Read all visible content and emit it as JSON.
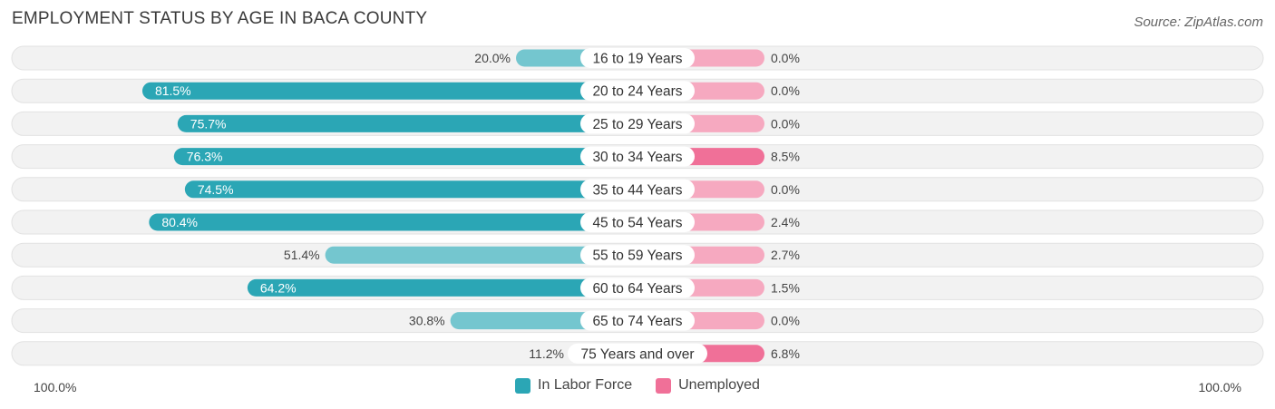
{
  "header": {
    "title": "EMPLOYMENT STATUS BY AGE IN BACA COUNTY",
    "source": "Source: ZipAtlas.com"
  },
  "colors": {
    "in_labor_force": "#2ba6b5",
    "in_labor_force_light": "#74c6cf",
    "unemployed": "#f07098",
    "unemployed_light": "#f6a9c0",
    "row_bg": "#f2f2f2"
  },
  "legend": {
    "in_labor_force": "In Labor Force",
    "unemployed": "Unemployed"
  },
  "axis": {
    "left_label": "100.0%",
    "right_label": "100.0%"
  },
  "chart_data": {
    "type": "bar",
    "orientation": "horizontal-diverging",
    "title": "EMPLOYMENT STATUS BY AGE IN BACA COUNTY",
    "categories": [
      "16 to 19 Years",
      "20 to 24 Years",
      "25 to 29 Years",
      "30 to 34 Years",
      "35 to 44 Years",
      "45 to 54 Years",
      "55 to 59 Years",
      "60 to 64 Years",
      "65 to 74 Years",
      "75 Years and over"
    ],
    "series": [
      {
        "name": "In Labor Force",
        "values": [
          20.0,
          81.5,
          75.7,
          76.3,
          74.5,
          80.4,
          51.4,
          64.2,
          30.8,
          11.2
        ],
        "labels": [
          "20.0%",
          "81.5%",
          "75.7%",
          "76.3%",
          "74.5%",
          "80.4%",
          "51.4%",
          "64.2%",
          "30.8%",
          "11.2%"
        ]
      },
      {
        "name": "Unemployed",
        "values": [
          0.0,
          0.0,
          0.0,
          8.5,
          0.0,
          2.4,
          2.7,
          1.5,
          0.0,
          6.8
        ],
        "labels": [
          "0.0%",
          "0.0%",
          "0.0%",
          "8.5%",
          "0.0%",
          "2.4%",
          "2.7%",
          "1.5%",
          "0.0%",
          "6.8%"
        ]
      }
    ],
    "xlim": [
      -100,
      100
    ],
    "legend_position": "bottom-center"
  }
}
